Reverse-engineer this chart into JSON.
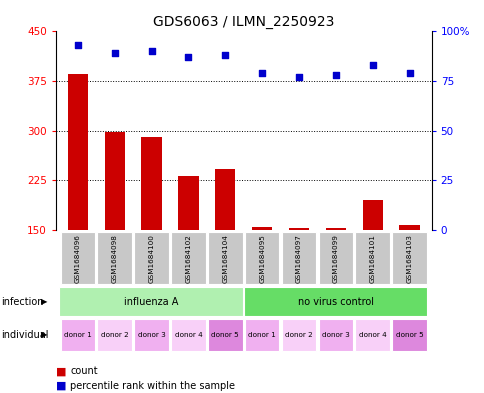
{
  "title": "GDS6063 / ILMN_2250923",
  "samples": [
    "GSM1684096",
    "GSM1684098",
    "GSM1684100",
    "GSM1684102",
    "GSM1684104",
    "GSM1684095",
    "GSM1684097",
    "GSM1684099",
    "GSM1684101",
    "GSM1684103"
  ],
  "counts": [
    385,
    298,
    290,
    232,
    242,
    155,
    153,
    153,
    195,
    158
  ],
  "percentile_ranks": [
    93,
    89,
    90,
    87,
    88,
    79,
    77,
    78,
    83,
    79
  ],
  "ylim_left": [
    150,
    450
  ],
  "ylim_right": [
    0,
    100
  ],
  "yticks_left": [
    150,
    225,
    300,
    375,
    450
  ],
  "yticks_right": [
    0,
    25,
    50,
    75,
    100
  ],
  "infection_groups": [
    {
      "label": "influenza A",
      "start": 0,
      "end": 5,
      "color": "#b0f0b0"
    },
    {
      "label": "no virus control",
      "start": 5,
      "end": 10,
      "color": "#66dd66"
    }
  ],
  "individual_labels": [
    "donor 1",
    "donor 2",
    "donor 3",
    "donor 4",
    "donor 5",
    "donor 1",
    "donor 2",
    "donor 3",
    "donor 4",
    "donor 5"
  ],
  "individual_colors": [
    "#f0b0f0",
    "#f8d0f8",
    "#f0b0f0",
    "#f8d0f8",
    "#dd88dd",
    "#f0b0f0",
    "#f8d0f8",
    "#f0b0f0",
    "#f8d0f8",
    "#dd88dd"
  ],
  "bar_color": "#cc0000",
  "dot_color": "#0000cc",
  "bar_width": 0.55,
  "tick_font_size": 7.5,
  "title_font_size": 10,
  "sample_box_color": "#c8c8c8",
  "infection_label": "infection",
  "individual_label": "individual"
}
